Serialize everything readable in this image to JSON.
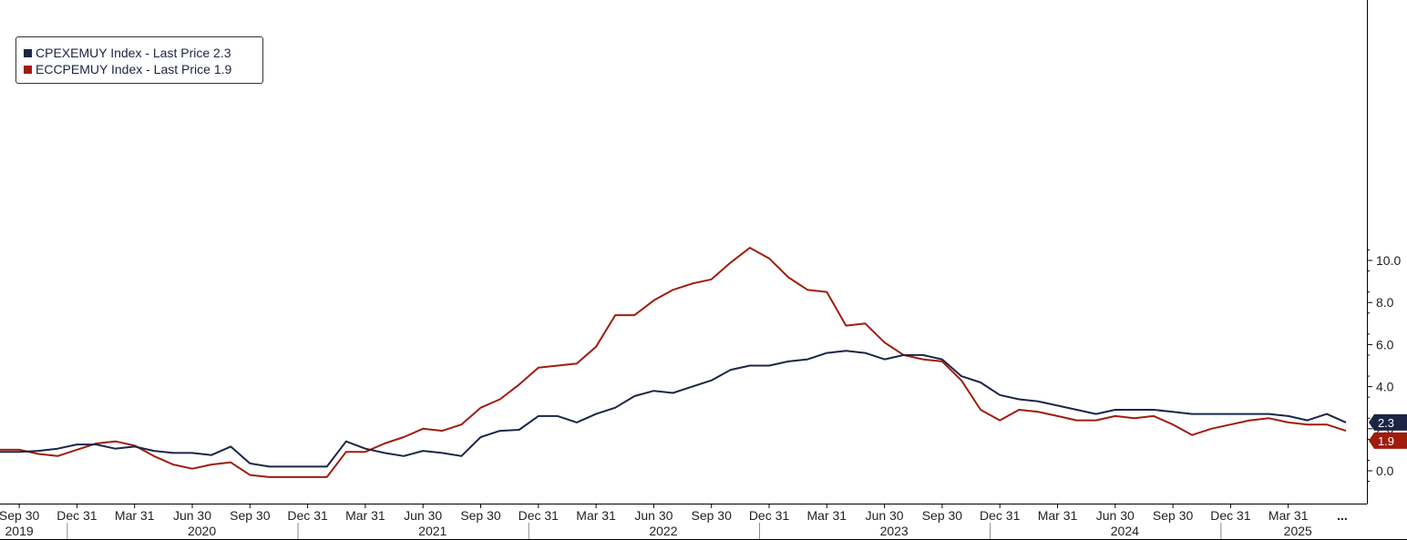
{
  "chart_data": {
    "type": "line",
    "series": [
      {
        "name": "CPEXEMUY Index - Last Price",
        "last_price": "2.3",
        "color": "#1b2647",
        "values": [
          0.9,
          0.9,
          0.95,
          1.05,
          1.25,
          1.25,
          1.05,
          1.15,
          0.95,
          0.85,
          0.85,
          0.75,
          1.15,
          0.35,
          0.2,
          0.2,
          0.2,
          0.2,
          1.4,
          1.05,
          0.85,
          0.7,
          0.95,
          0.85,
          0.7,
          1.6,
          1.9,
          1.95,
          2.6,
          2.6,
          2.3,
          2.7,
          3.0,
          3.55,
          3.8,
          3.7,
          4.0,
          4.3,
          4.8,
          5.0,
          5.0,
          5.2,
          5.3,
          5.6,
          5.7,
          5.6,
          5.3,
          5.5,
          5.5,
          5.3,
          4.5,
          4.2,
          3.6,
          3.4,
          3.3,
          3.1,
          2.9,
          2.7,
          2.9,
          2.9,
          2.9,
          2.8,
          2.7,
          2.7,
          2.7,
          2.7,
          2.7,
          2.6,
          2.4,
          2.7,
          2.3
        ]
      },
      {
        "name": "ECCPEMUY Index - Last Price",
        "last_price": "1.9",
        "color": "#a01c0c",
        "values": [
          1.0,
          1.0,
          0.8,
          0.7,
          1.0,
          1.3,
          1.4,
          1.2,
          0.7,
          0.3,
          0.1,
          0.3,
          0.4,
          -0.2,
          -0.3,
          -0.3,
          -0.3,
          -0.3,
          0.9,
          0.9,
          1.3,
          1.6,
          2.0,
          1.9,
          2.2,
          3.0,
          3.4,
          4.1,
          4.9,
          5.0,
          5.1,
          5.9,
          7.4,
          7.4,
          8.1,
          8.6,
          8.9,
          9.1,
          9.9,
          10.6,
          10.1,
          9.2,
          8.6,
          8.5,
          6.9,
          7.0,
          6.1,
          5.5,
          5.3,
          5.2,
          4.3,
          2.9,
          2.4,
          2.9,
          2.8,
          2.6,
          2.4,
          2.4,
          2.6,
          2.5,
          2.6,
          2.2,
          1.7,
          2.0,
          2.2,
          2.4,
          2.5,
          2.3,
          2.2,
          2.2,
          1.9
        ]
      }
    ],
    "x_tick_labels": [
      "Sep 30",
      "Dec 31",
      "Mar 31",
      "Jun 30",
      "Sep 30",
      "Dec 31",
      "Mar 31",
      "Jun 30",
      "Sep 30",
      "Dec 31",
      "Mar 31",
      "Jun 30",
      "Sep 30",
      "Dec 31",
      "Mar 31",
      "Jun 30",
      "Sep 30",
      "Dec 31",
      "Mar 31",
      "Jun 30",
      "Sep 30",
      "Dec 31",
      "Mar 31"
    ],
    "x_tick_index": [
      1,
      4,
      7,
      10,
      13,
      16,
      19,
      22,
      25,
      28,
      31,
      34,
      37,
      40,
      43,
      46,
      49,
      52,
      55,
      58,
      61,
      64,
      67
    ],
    "year_labels": [
      "2019",
      "2020",
      "2021",
      "2022",
      "2023",
      "2024",
      "2025"
    ],
    "year_label_index": [
      1,
      10.5,
      22.5,
      34.5,
      46.5,
      58.5,
      67.5
    ],
    "year_separator_index": [
      3.5,
      15.5,
      27.5,
      39.5,
      51.5,
      63.5
    ],
    "x_more_label": "...",
    "y_ticks": [
      "0.0",
      "2.0",
      "4.0",
      "6.0",
      "8.0",
      "10.0"
    ],
    "y_tick_values": [
      0,
      2,
      4,
      6,
      8,
      10
    ],
    "ylim": [
      -0.8,
      11.0
    ],
    "y_axis_side": "right",
    "legend_position": "top-left",
    "grid": false
  }
}
